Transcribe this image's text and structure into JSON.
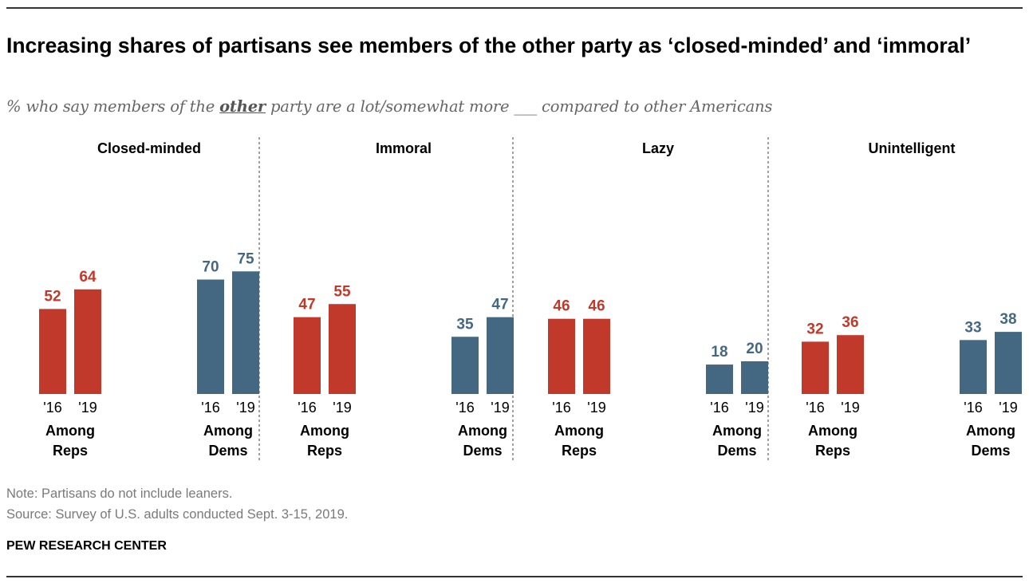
{
  "title": "Increasing shares of partisans see members of the other party as ‘closed-minded’ and ‘immoral’",
  "subtitle": {
    "before": "% who say members of the ",
    "emphasis": "other",
    "after": " party are a lot/somewhat more ___ compared to other Americans"
  },
  "note": "Note: Partisans do not include leaners.",
  "source": "Source: Survey of U.S. adults conducted Sept. 3-15, 2019.",
  "brand": "PEW RESEARCH CENTER",
  "colors": {
    "reps": "#c0392b",
    "dems": "#456882",
    "divider": "#a0a0a0"
  },
  "chart_data": {
    "type": "bar",
    "years": [
      "'16",
      "'19"
    ],
    "series": [
      {
        "name": "Among Reps",
        "label_lines": [
          "Among",
          "Reps"
        ],
        "color": "#c0392b"
      },
      {
        "name": "Among Dems",
        "label_lines": [
          "Among",
          "Dems"
        ],
        "color": "#456882"
      }
    ],
    "panels": [
      {
        "title": "Closed-minded",
        "reps": [
          52,
          64
        ],
        "dems": [
          70,
          75
        ]
      },
      {
        "title": "Immoral",
        "reps": [
          47,
          55
        ],
        "dems": [
          35,
          47
        ]
      },
      {
        "title": "Lazy",
        "reps": [
          46,
          46
        ],
        "dems": [
          18,
          20
        ]
      },
      {
        "title": "Unintelligent",
        "reps": [
          32,
          36
        ],
        "dems": [
          33,
          38
        ]
      }
    ],
    "ylim": [
      0,
      100
    ]
  }
}
